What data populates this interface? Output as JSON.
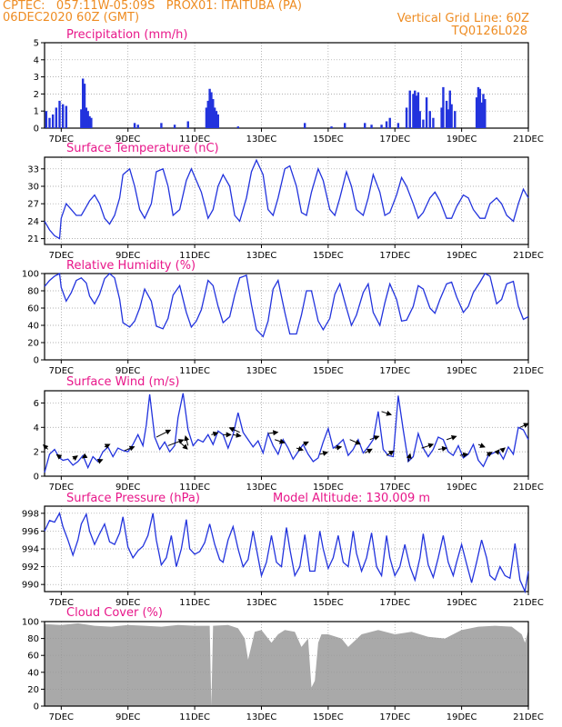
{
  "header": {
    "line1_left": "CPTEC:   057:11W-05:09S   PROX01: ITAITUBA (PA)",
    "line2_left": "06DEC2020 60Z (GMT)",
    "line2_right": "Vertical Grid Line: 60Z",
    "line3_right": "TQ0126L028"
  },
  "colors": {
    "header_text": "#ee8c22",
    "panel_title": "#e8178a",
    "series_line": "#2233dd",
    "precip_bar": "#2233dd",
    "cloud_fill": "#a9a9a9",
    "grid": "#999999"
  },
  "chart_data": [
    {
      "type": "bar",
      "title": "Precipitation (mm/h)",
      "unit": "mm/h",
      "x_tick_labels": [
        "7DEC",
        "9DEC",
        "11DEC",
        "13DEC",
        "15DEC",
        "17DEC",
        "19DEC",
        "21DEC"
      ],
      "x_range_days": [
        6.5,
        21.0
      ],
      "ylim": [
        0,
        5
      ],
      "y_ticks": [
        0,
        1,
        2,
        3,
        4,
        5
      ],
      "grid": true,
      "x": [
        6.55,
        6.65,
        6.75,
        6.85,
        6.95,
        7.05,
        7.15,
        7.6,
        7.65,
        7.7,
        7.75,
        7.8,
        7.85,
        7.9,
        9.2,
        9.3,
        10.0,
        10.4,
        10.8,
        11.35,
        11.4,
        11.45,
        11.5,
        11.55,
        11.6,
        11.65,
        11.7,
        12.3,
        14.3,
        15.1,
        15.5,
        16.1,
        16.3,
        16.6,
        16.75,
        16.85,
        17.1,
        17.35,
        17.45,
        17.55,
        17.6,
        17.65,
        17.7,
        17.75,
        17.85,
        17.95,
        18.05,
        18.15,
        18.4,
        18.45,
        18.55,
        18.6,
        18.65,
        18.7,
        18.8,
        19.45,
        19.5,
        19.55,
        19.6,
        19.65,
        19.7
      ],
      "values": [
        1.0,
        0.6,
        0.8,
        1.2,
        1.6,
        1.4,
        1.3,
        1.1,
        2.9,
        2.6,
        1.2,
        1.0,
        0.7,
        0.6,
        0.3,
        0.2,
        0.3,
        0.2,
        0.4,
        1.2,
        1.6,
        2.3,
        2.1,
        1.7,
        1.2,
        1.0,
        0.8,
        0.1,
        0.3,
        0.1,
        0.3,
        0.3,
        0.2,
        0.2,
        0.4,
        0.6,
        0.3,
        1.2,
        2.2,
        2.0,
        2.2,
        1.9,
        2.1,
        1.0,
        0.5,
        1.8,
        1.0,
        0.6,
        1.2,
        2.4,
        1.6,
        1.1,
        2.2,
        1.4,
        1.0,
        1.8,
        2.4,
        2.3,
        1.5,
        2.0,
        1.7
      ]
    },
    {
      "type": "line",
      "title": "Surface Temperature (nC)",
      "unit": "nC",
      "ylim": [
        20,
        35
      ],
      "y_ticks": [
        21,
        24,
        27,
        30,
        33
      ],
      "grid": true,
      "x": [
        6.5,
        6.65,
        6.8,
        6.95,
        7.0,
        7.15,
        7.3,
        7.45,
        7.6,
        7.75,
        7.85,
        8.0,
        8.15,
        8.3,
        8.45,
        8.6,
        8.75,
        8.85,
        9.05,
        9.2,
        9.35,
        9.5,
        9.7,
        9.85,
        10.05,
        10.2,
        10.35,
        10.55,
        10.75,
        10.9,
        11.05,
        11.2,
        11.4,
        11.55,
        11.7,
        11.85,
        12.05,
        12.2,
        12.35,
        12.55,
        12.7,
        12.85,
        13.05,
        13.2,
        13.35,
        13.5,
        13.7,
        13.85,
        14.05,
        14.2,
        14.35,
        14.5,
        14.7,
        14.85,
        15.05,
        15.2,
        15.35,
        15.55,
        15.7,
        15.85,
        16.05,
        16.2,
        16.35,
        16.55,
        16.7,
        16.85,
        17.05,
        17.2,
        17.35,
        17.55,
        17.7,
        17.85,
        18.05,
        18.2,
        18.35,
        18.55,
        18.7,
        18.85,
        19.05,
        19.2,
        19.35,
        19.55,
        19.7,
        19.85,
        20.05,
        20.2,
        20.35,
        20.55,
        20.7,
        20.85,
        21.0
      ],
      "values": [
        24.0,
        22.5,
        21.5,
        21.0,
        24.5,
        27.0,
        26.0,
        25.0,
        25.0,
        26.5,
        27.5,
        28.5,
        27.0,
        24.5,
        23.5,
        25.0,
        28.0,
        32.0,
        33.0,
        30.0,
        26.0,
        24.5,
        27.0,
        32.5,
        33.0,
        30.0,
        25.0,
        26.0,
        31.0,
        33.0,
        31.0,
        29.0,
        24.5,
        26.0,
        30.0,
        32.0,
        30.0,
        25.0,
        24.0,
        28.0,
        32.5,
        34.5,
        32.0,
        26.0,
        25.0,
        28.0,
        33.0,
        33.5,
        30.0,
        25.5,
        25.0,
        29.0,
        33.0,
        31.0,
        26.0,
        25.0,
        28.0,
        32.5,
        30.0,
        26.0,
        25.0,
        28.0,
        32.0,
        29.0,
        25.0,
        25.5,
        28.5,
        31.5,
        30.0,
        27.0,
        24.5,
        25.5,
        28.0,
        29.0,
        27.5,
        24.5,
        24.5,
        26.5,
        28.5,
        28.0,
        26.0,
        24.5,
        24.5,
        27.0,
        28.0,
        27.0,
        25.0,
        24.0,
        27.0,
        29.5,
        28.0
      ]
    },
    {
      "type": "line",
      "title": "Relative Humidity (%)",
      "unit": "%",
      "ylim": [
        0,
        100
      ],
      "y_ticks": [
        0,
        20,
        40,
        60,
        80,
        100
      ],
      "grid": true,
      "x": [
        6.5,
        6.65,
        6.8,
        6.95,
        7.0,
        7.15,
        7.3,
        7.45,
        7.6,
        7.75,
        7.85,
        8.0,
        8.15,
        8.3,
        8.45,
        8.6,
        8.75,
        8.85,
        9.05,
        9.2,
        9.35,
        9.5,
        9.7,
        9.85,
        10.05,
        10.2,
        10.35,
        10.55,
        10.75,
        10.9,
        11.05,
        11.2,
        11.4,
        11.55,
        11.7,
        11.85,
        12.05,
        12.2,
        12.35,
        12.55,
        12.7,
        12.85,
        13.05,
        13.2,
        13.35,
        13.5,
        13.7,
        13.85,
        14.05,
        14.2,
        14.35,
        14.5,
        14.7,
        14.85,
        15.05,
        15.2,
        15.35,
        15.55,
        15.7,
        15.85,
        16.05,
        16.2,
        16.35,
        16.55,
        16.7,
        16.85,
        17.05,
        17.2,
        17.35,
        17.55,
        17.7,
        17.85,
        18.05,
        18.2,
        18.35,
        18.55,
        18.7,
        18.85,
        19.05,
        19.2,
        19.35,
        19.55,
        19.7,
        19.85,
        20.05,
        20.2,
        20.35,
        20.55,
        20.7,
        20.85,
        21.0
      ],
      "values": [
        85,
        92,
        97,
        100,
        84,
        68,
        78,
        92,
        95,
        89,
        74,
        65,
        76,
        94,
        100,
        95,
        70,
        43,
        38,
        45,
        60,
        82,
        68,
        39,
        36,
        48,
        75,
        86,
        55,
        38,
        45,
        58,
        92,
        86,
        62,
        43,
        50,
        75,
        95,
        98,
        64,
        35,
        27,
        45,
        82,
        92,
        55,
        30,
        30,
        52,
        80,
        80,
        45,
        35,
        48,
        76,
        88,
        60,
        40,
        52,
        78,
        88,
        55,
        40,
        66,
        88,
        70,
        45,
        46,
        62,
        86,
        82,
        60,
        54,
        70,
        88,
        90,
        73,
        55,
        62,
        78,
        90,
        100,
        97,
        65,
        70,
        88,
        91,
        62,
        47,
        50
      ]
    },
    {
      "type": "line",
      "title": "Surface Wind (m/s)",
      "unit": "m/s",
      "ylim": [
        0,
        7
      ],
      "y_ticks": [
        0,
        2,
        4,
        6
      ],
      "grid": true,
      "x": [
        6.5,
        6.65,
        6.8,
        6.95,
        7.05,
        7.2,
        7.35,
        7.5,
        7.65,
        7.8,
        7.95,
        8.1,
        8.25,
        8.4,
        8.55,
        8.7,
        8.85,
        9.0,
        9.15,
        9.3,
        9.45,
        9.55,
        9.65,
        9.8,
        9.95,
        10.1,
        10.25,
        10.4,
        10.5,
        10.65,
        10.8,
        10.95,
        11.1,
        11.25,
        11.4,
        11.55,
        11.7,
        11.85,
        12.0,
        12.15,
        12.3,
        12.45,
        12.6,
        12.75,
        12.9,
        13.05,
        13.2,
        13.35,
        13.5,
        13.65,
        13.8,
        13.95,
        14.1,
        14.25,
        14.4,
        14.55,
        14.7,
        14.85,
        15.0,
        15.15,
        15.3,
        15.45,
        15.6,
        15.75,
        15.9,
        16.05,
        16.2,
        16.35,
        16.5,
        16.65,
        16.8,
        16.95,
        17.1,
        17.25,
        17.4,
        17.55,
        17.7,
        17.85,
        18.0,
        18.15,
        18.3,
        18.45,
        18.6,
        18.75,
        18.9,
        19.05,
        19.2,
        19.35,
        19.5,
        19.65,
        19.8,
        19.95,
        20.1,
        20.25,
        20.4,
        20.55,
        20.7,
        20.85,
        21.0
      ],
      "values": [
        0.3,
        1.8,
        2.2,
        1.5,
        1.3,
        1.4,
        0.9,
        1.2,
        1.7,
        0.7,
        1.6,
        1.2,
        2.0,
        2.4,
        1.6,
        2.3,
        2.1,
        2.0,
        2.6,
        3.4,
        2.5,
        4.2,
        6.7,
        3.2,
        2.2,
        2.8,
        2.0,
        2.5,
        4.8,
        6.8,
        3.8,
        2.5,
        3.0,
        2.8,
        3.4,
        2.6,
        3.7,
        3.4,
        2.3,
        3.4,
        5.2,
        3.6,
        3.0,
        2.4,
        2.9,
        1.9,
        3.5,
        2.5,
        1.8,
        3.0,
        2.3,
        1.4,
        2.0,
        2.6,
        1.8,
        1.2,
        1.5,
        2.8,
        3.9,
        2.3,
        2.6,
        3.0,
        1.7,
        2.2,
        3.0,
        1.9,
        2.4,
        3.0,
        5.3,
        2.2,
        1.7,
        1.6,
        6.6,
        3.8,
        1.2,
        1.6,
        3.5,
        2.3,
        1.6,
        2.2,
        3.2,
        3.0,
        2.0,
        1.7,
        2.5,
        1.5,
        1.8,
        2.6,
        1.3,
        0.8,
        1.7,
        1.9,
        2.1,
        1.4,
        2.4,
        1.8,
        4.0,
        3.8,
        3.0
      ]
    },
    {
      "type": "line",
      "title": "Surface Pressure (hPa)",
      "unit": "hPa",
      "annotation": "Model Altitude: 130.009 m",
      "ylim": [
        989.2,
        998.8
      ],
      "y_ticks": [
        990,
        992,
        994,
        996,
        998
      ],
      "grid": true,
      "x": [
        6.5,
        6.65,
        6.8,
        6.95,
        7.05,
        7.2,
        7.35,
        7.5,
        7.6,
        7.75,
        7.85,
        8.0,
        8.15,
        8.3,
        8.45,
        8.6,
        8.75,
        8.85,
        9.0,
        9.15,
        9.3,
        9.45,
        9.6,
        9.75,
        9.85,
        10.0,
        10.15,
        10.3,
        10.45,
        10.6,
        10.75,
        10.85,
        11.0,
        11.15,
        11.3,
        11.45,
        11.6,
        11.75,
        11.85,
        12.0,
        12.15,
        12.3,
        12.45,
        12.6,
        12.75,
        12.85,
        13.0,
        13.15,
        13.3,
        13.45,
        13.6,
        13.75,
        13.85,
        14.0,
        14.15,
        14.3,
        14.45,
        14.6,
        14.75,
        14.85,
        15.0,
        15.15,
        15.3,
        15.45,
        15.6,
        15.75,
        15.85,
        16.0,
        16.15,
        16.3,
        16.45,
        16.6,
        16.75,
        16.85,
        17.0,
        17.15,
        17.3,
        17.45,
        17.6,
        17.75,
        17.85,
        18.0,
        18.15,
        18.3,
        18.45,
        18.6,
        18.75,
        18.85,
        19.0,
        19.15,
        19.3,
        19.45,
        19.6,
        19.75,
        19.85,
        20.0,
        20.15,
        20.3,
        20.45,
        20.6,
        20.75,
        20.9,
        21.0
      ],
      "values": [
        996.0,
        997.2,
        997.0,
        998.0,
        996.5,
        995.0,
        993.3,
        995.0,
        996.8,
        997.9,
        996.0,
        994.5,
        995.7,
        996.8,
        994.8,
        994.5,
        995.8,
        997.6,
        994.2,
        993.0,
        993.8,
        994.3,
        995.5,
        998.0,
        995.0,
        992.2,
        993.0,
        995.5,
        992.0,
        994.0,
        997.3,
        994.0,
        993.4,
        993.7,
        994.7,
        996.8,
        994.5,
        992.8,
        992.5,
        995.0,
        996.5,
        994.0,
        992.0,
        992.8,
        996.0,
        994.0,
        991.0,
        992.5,
        995.5,
        992.5,
        992.0,
        996.4,
        994.0,
        991.0,
        992.0,
        995.6,
        991.5,
        991.5,
        996.0,
        994.0,
        991.8,
        993.0,
        995.5,
        992.5,
        992.0,
        996.0,
        993.5,
        991.5,
        993.0,
        995.8,
        992.0,
        991.0,
        995.5,
        993.0,
        991.0,
        992.0,
        994.5,
        992.0,
        990.5,
        993.0,
        995.7,
        992.2,
        990.8,
        993.0,
        995.5,
        992.5,
        991.0,
        992.5,
        994.5,
        992.3,
        990.2,
        992.5,
        995.0,
        993.0,
        991.0,
        990.5,
        992.0,
        991.0,
        990.7,
        994.6,
        990.5,
        989.2,
        991.5
      ]
    },
    {
      "type": "area",
      "title": "Cloud Cover (%)",
      "unit": "%",
      "ylim": [
        0,
        100
      ],
      "y_ticks": [
        0,
        20,
        40,
        60,
        80,
        100
      ],
      "grid": true,
      "x": [
        6.5,
        7.0,
        7.5,
        8.0,
        8.5,
        9.0,
        9.5,
        10.0,
        10.5,
        11.0,
        11.45,
        11.5,
        11.55,
        12.0,
        12.3,
        12.5,
        12.6,
        12.8,
        13.0,
        13.3,
        13.5,
        13.7,
        14.0,
        14.2,
        14.4,
        14.5,
        14.6,
        14.7,
        14.8,
        15.0,
        15.4,
        15.6,
        16.0,
        16.5,
        17.0,
        17.5,
        18.0,
        18.5,
        19.0,
        19.5,
        20.0,
        20.5,
        20.8,
        20.9,
        21.0
      ],
      "values": [
        97,
        96,
        98,
        95,
        94,
        96,
        95,
        94,
        96,
        95,
        95,
        0,
        95,
        96,
        92,
        80,
        55,
        88,
        90,
        75,
        85,
        90,
        88,
        70,
        80,
        22,
        30,
        75,
        85,
        85,
        80,
        70,
        85,
        90,
        85,
        88,
        82,
        80,
        90,
        94,
        95,
        94,
        85,
        75,
        90
      ]
    }
  ],
  "wind_vectors": {
    "x": [
      6.6,
      7.0,
      7.35,
      7.75,
      8.1,
      8.3,
      8.9,
      9.85,
      10.2,
      10.55,
      10.8,
      11.5,
      11.85,
      12.15,
      12.35,
      13.2,
      13.4,
      14.05,
      14.25,
      14.75,
      15.2,
      15.65,
      16.1,
      16.25,
      16.6,
      16.75,
      17.4,
      17.8,
      18.3,
      18.55,
      18.95,
      19.5,
      19.75,
      20.05,
      20.2,
      20.75
    ],
    "wind_ms": [
      2.2,
      1.5,
      1.4,
      1.7,
      1.2,
      2.4,
      2.1,
      3.2,
      2.5,
      2.8,
      2.5,
      3.4,
      3.4,
      3.4,
      3.6,
      3.5,
      3.0,
      2.3,
      2.6,
      1.8,
      2.3,
      3.0,
      1.9,
      3.0,
      5.3,
      1.7,
      1.2,
      2.3,
      2.2,
      3.0,
      1.7,
      2.6,
      1.7,
      1.9,
      2.1,
      4.0
    ],
    "u": [
      -0.7,
      -0.7,
      0.7,
      -0.6,
      0.7,
      0.8,
      1.5,
      2.2,
      2.4,
      1.2,
      -0.4,
      1.0,
      1.2,
      1.2,
      -1.6,
      1.5,
      1.5,
      1.0,
      0.8,
      1.2,
      1.0,
      1.6,
      1.1,
      1.4,
      1.5,
      1.1,
      0.3,
      1.8,
      1.3,
      1.5,
      1.2,
      1.0,
      0.8,
      0.4,
      0.5,
      1.3
    ],
    "v": [
      0.7,
      0.5,
      0.5,
      -0.4,
      0.3,
      0.4,
      0.6,
      1.1,
      0.9,
      -1.1,
      1.5,
      0.3,
      0.0,
      -0.2,
      0.7,
      0.2,
      -0.5,
      -0.3,
      0.4,
      0.3,
      0.2,
      -0.7,
      0.6,
      0.5,
      -0.5,
      0.7,
      1.2,
      0.6,
      0.2,
      0.5,
      0.2,
      -0.4,
      0.5,
      0.5,
      0.4,
      0.6
    ]
  }
}
